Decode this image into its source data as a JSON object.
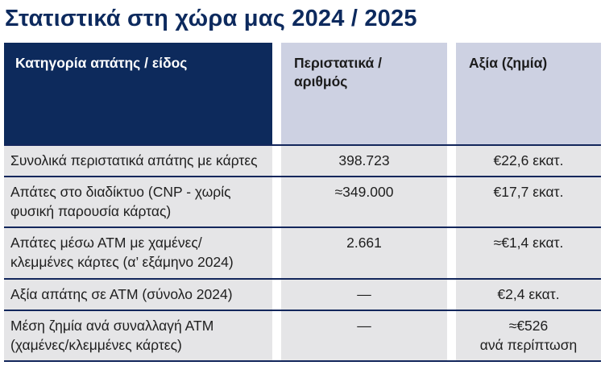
{
  "page": {
    "title": "Στατιστικά στη χώρα μας 2024 / 2025"
  },
  "colors": {
    "title_navy": "#0d2a5e",
    "header_dark_bg": "#0d2a5c",
    "header_light_bg": "#cdd1e2",
    "row_bg": "#e5e5e7",
    "separator_navy": "#13275c"
  },
  "chart_data": {
    "type": "table",
    "title": "Στατιστικά στη χώρα μας 2024 / 2025",
    "columns": [
      "Κατηγορία απάτης / είδος",
      "Περιστατικά / αριθμός",
      "Αξία (ζημία)"
    ],
    "rows": [
      {
        "category": "Συνολικά περιστατικά απάτης με κάρτες",
        "incidents": "398.723",
        "value": "€22,6 εκατ."
      },
      {
        "category": "Απάτες στο διαδίκτυο (CNP - χωρίς φυσική παρουσία κάρτας)",
        "incidents": "≈349.000",
        "value": "€17,7 εκατ."
      },
      {
        "category": "Απάτες μέσω ΑΤΜ με χαμένες/κλεμμένες κάρτες (α’ εξάμηνο 2024)",
        "incidents": "2.661",
        "value": "≈€1,4 εκατ."
      },
      {
        "category": "Αξία απάτης σε ΑΤΜ (σύνολο 2024)",
        "incidents": "—",
        "value": "€2,4 εκατ."
      },
      {
        "category": "Μέση ζημία ανά συναλλαγή ΑΤΜ (χαμένες/κλεμμένες κάρτες)",
        "incidents": "—",
        "value": "≈€526\nανά περίπτωση"
      }
    ]
  }
}
